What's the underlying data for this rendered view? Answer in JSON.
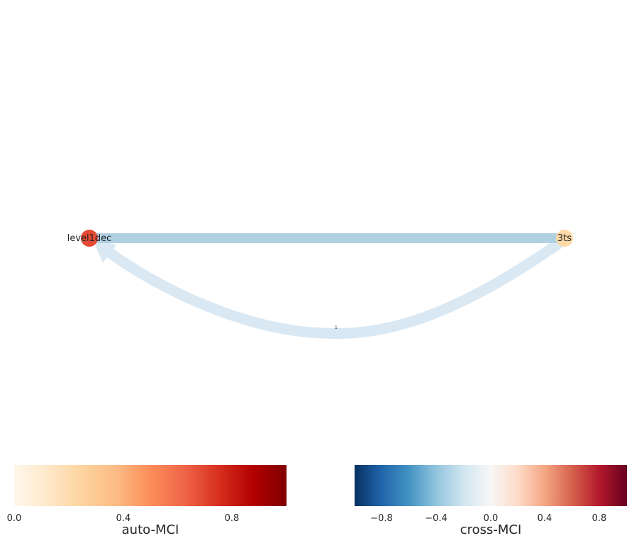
{
  "graph": {
    "nodes": [
      {
        "id": "level1dec",
        "label": "level1dec",
        "color": "#e34a33"
      },
      {
        "id": "3ts",
        "label": "3ts",
        "color": "#fdd9a8"
      }
    ],
    "edges": [
      {
        "from": "level1dec",
        "to": "3ts",
        "type": "contemporaneous",
        "color": "#b0d1e4"
      },
      {
        "from": "3ts",
        "to": "level1dec",
        "type": "lagged",
        "lag_label": "1",
        "color": "#d9e8f3"
      }
    ]
  },
  "colorbars": {
    "auto": {
      "title": "auto-MCI",
      "range": [
        0.0,
        1.0
      ],
      "ticks": [
        "0.0",
        "0.4",
        "0.8"
      ],
      "colors": [
        "#fff7ec",
        "#fee8c8",
        "#fdd49e",
        "#fdbb84",
        "#fc8d59",
        "#ef6548",
        "#d7301f",
        "#b30000",
        "#7f0000"
      ]
    },
    "cross": {
      "title": "cross-MCI",
      "range": [
        -1.0,
        1.0
      ],
      "ticks": [
        "−0.8",
        "−0.4",
        "0.0",
        "0.4",
        "0.8"
      ],
      "colors": [
        "#053061",
        "#2166ac",
        "#4393c3",
        "#92c5de",
        "#d1e5f0",
        "#f7f7f7",
        "#fddbc7",
        "#f4a582",
        "#d6604d",
        "#b2182b",
        "#67001f"
      ]
    }
  }
}
